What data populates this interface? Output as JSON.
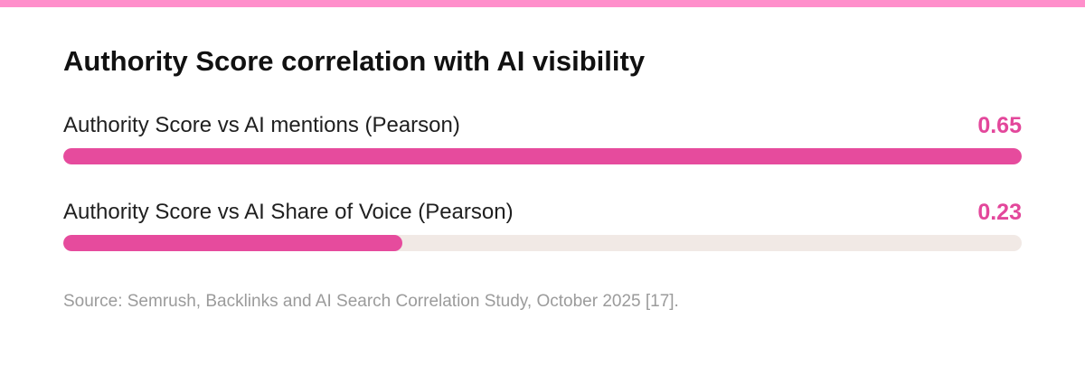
{
  "page": {
    "title": "Authority Score correlation with AI visibility",
    "source": "Source: Semrush, Backlinks and AI Search Correlation Study, October 2025 [17]."
  },
  "colors": {
    "accent_bar": "#e64b9d",
    "value_text": "#e3479b",
    "track": "#f1e9e5",
    "top_accent": "#ff8fcb"
  },
  "chart_data": {
    "type": "bar",
    "orientation": "horizontal",
    "title": "Authority Score correlation with AI visibility",
    "categories": [
      "Authority Score vs AI mentions (Pearson)",
      "Authority Score vs AI Share of Voice (Pearson)"
    ],
    "values": [
      0.65,
      0.23
    ],
    "value_labels": [
      "0.65",
      "0.23"
    ],
    "xlim": [
      0,
      0.65
    ],
    "grid": false
  }
}
